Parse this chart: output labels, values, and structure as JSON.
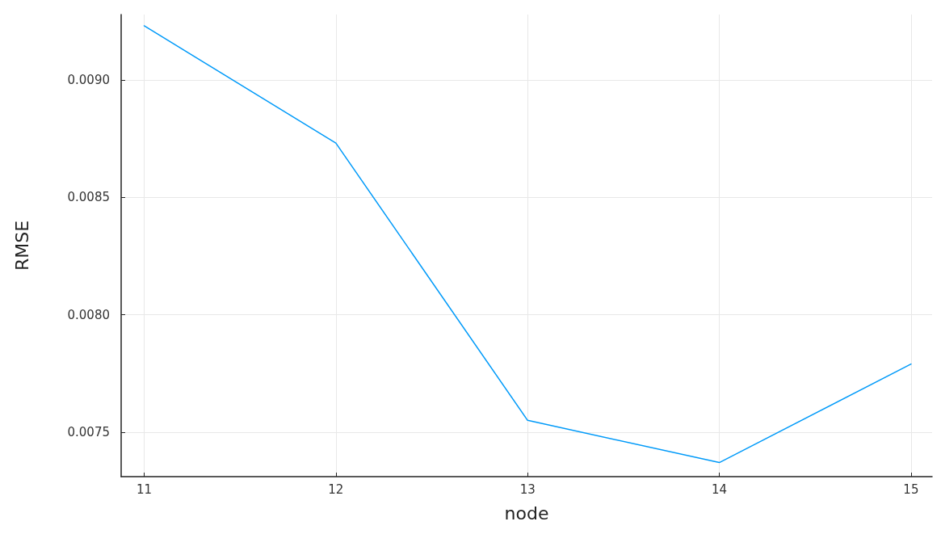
{
  "chart_data": {
    "type": "line",
    "xlabel": "node",
    "ylabel": "RMSE",
    "x": [
      11,
      12,
      13,
      14,
      15
    ],
    "series": [
      {
        "color": "#009af9",
        "values": [
          0.009232,
          0.008732,
          0.00755,
          0.00737,
          0.00779
        ]
      }
    ],
    "xlim": [
      10.88,
      15.11
    ],
    "xticks": [
      11,
      12,
      13,
      14,
      15
    ],
    "ylim": [
      0.00731,
      0.00928
    ],
    "yticks": [
      {
        "value": 0.0075,
        "label": "0.0075"
      },
      {
        "value": 0.008,
        "label": "0.0080"
      },
      {
        "value": 0.0085,
        "label": "0.0085"
      },
      {
        "value": 0.009,
        "label": "0.0090"
      }
    ],
    "grid": true,
    "marker": "none",
    "line_style": "solid"
  }
}
